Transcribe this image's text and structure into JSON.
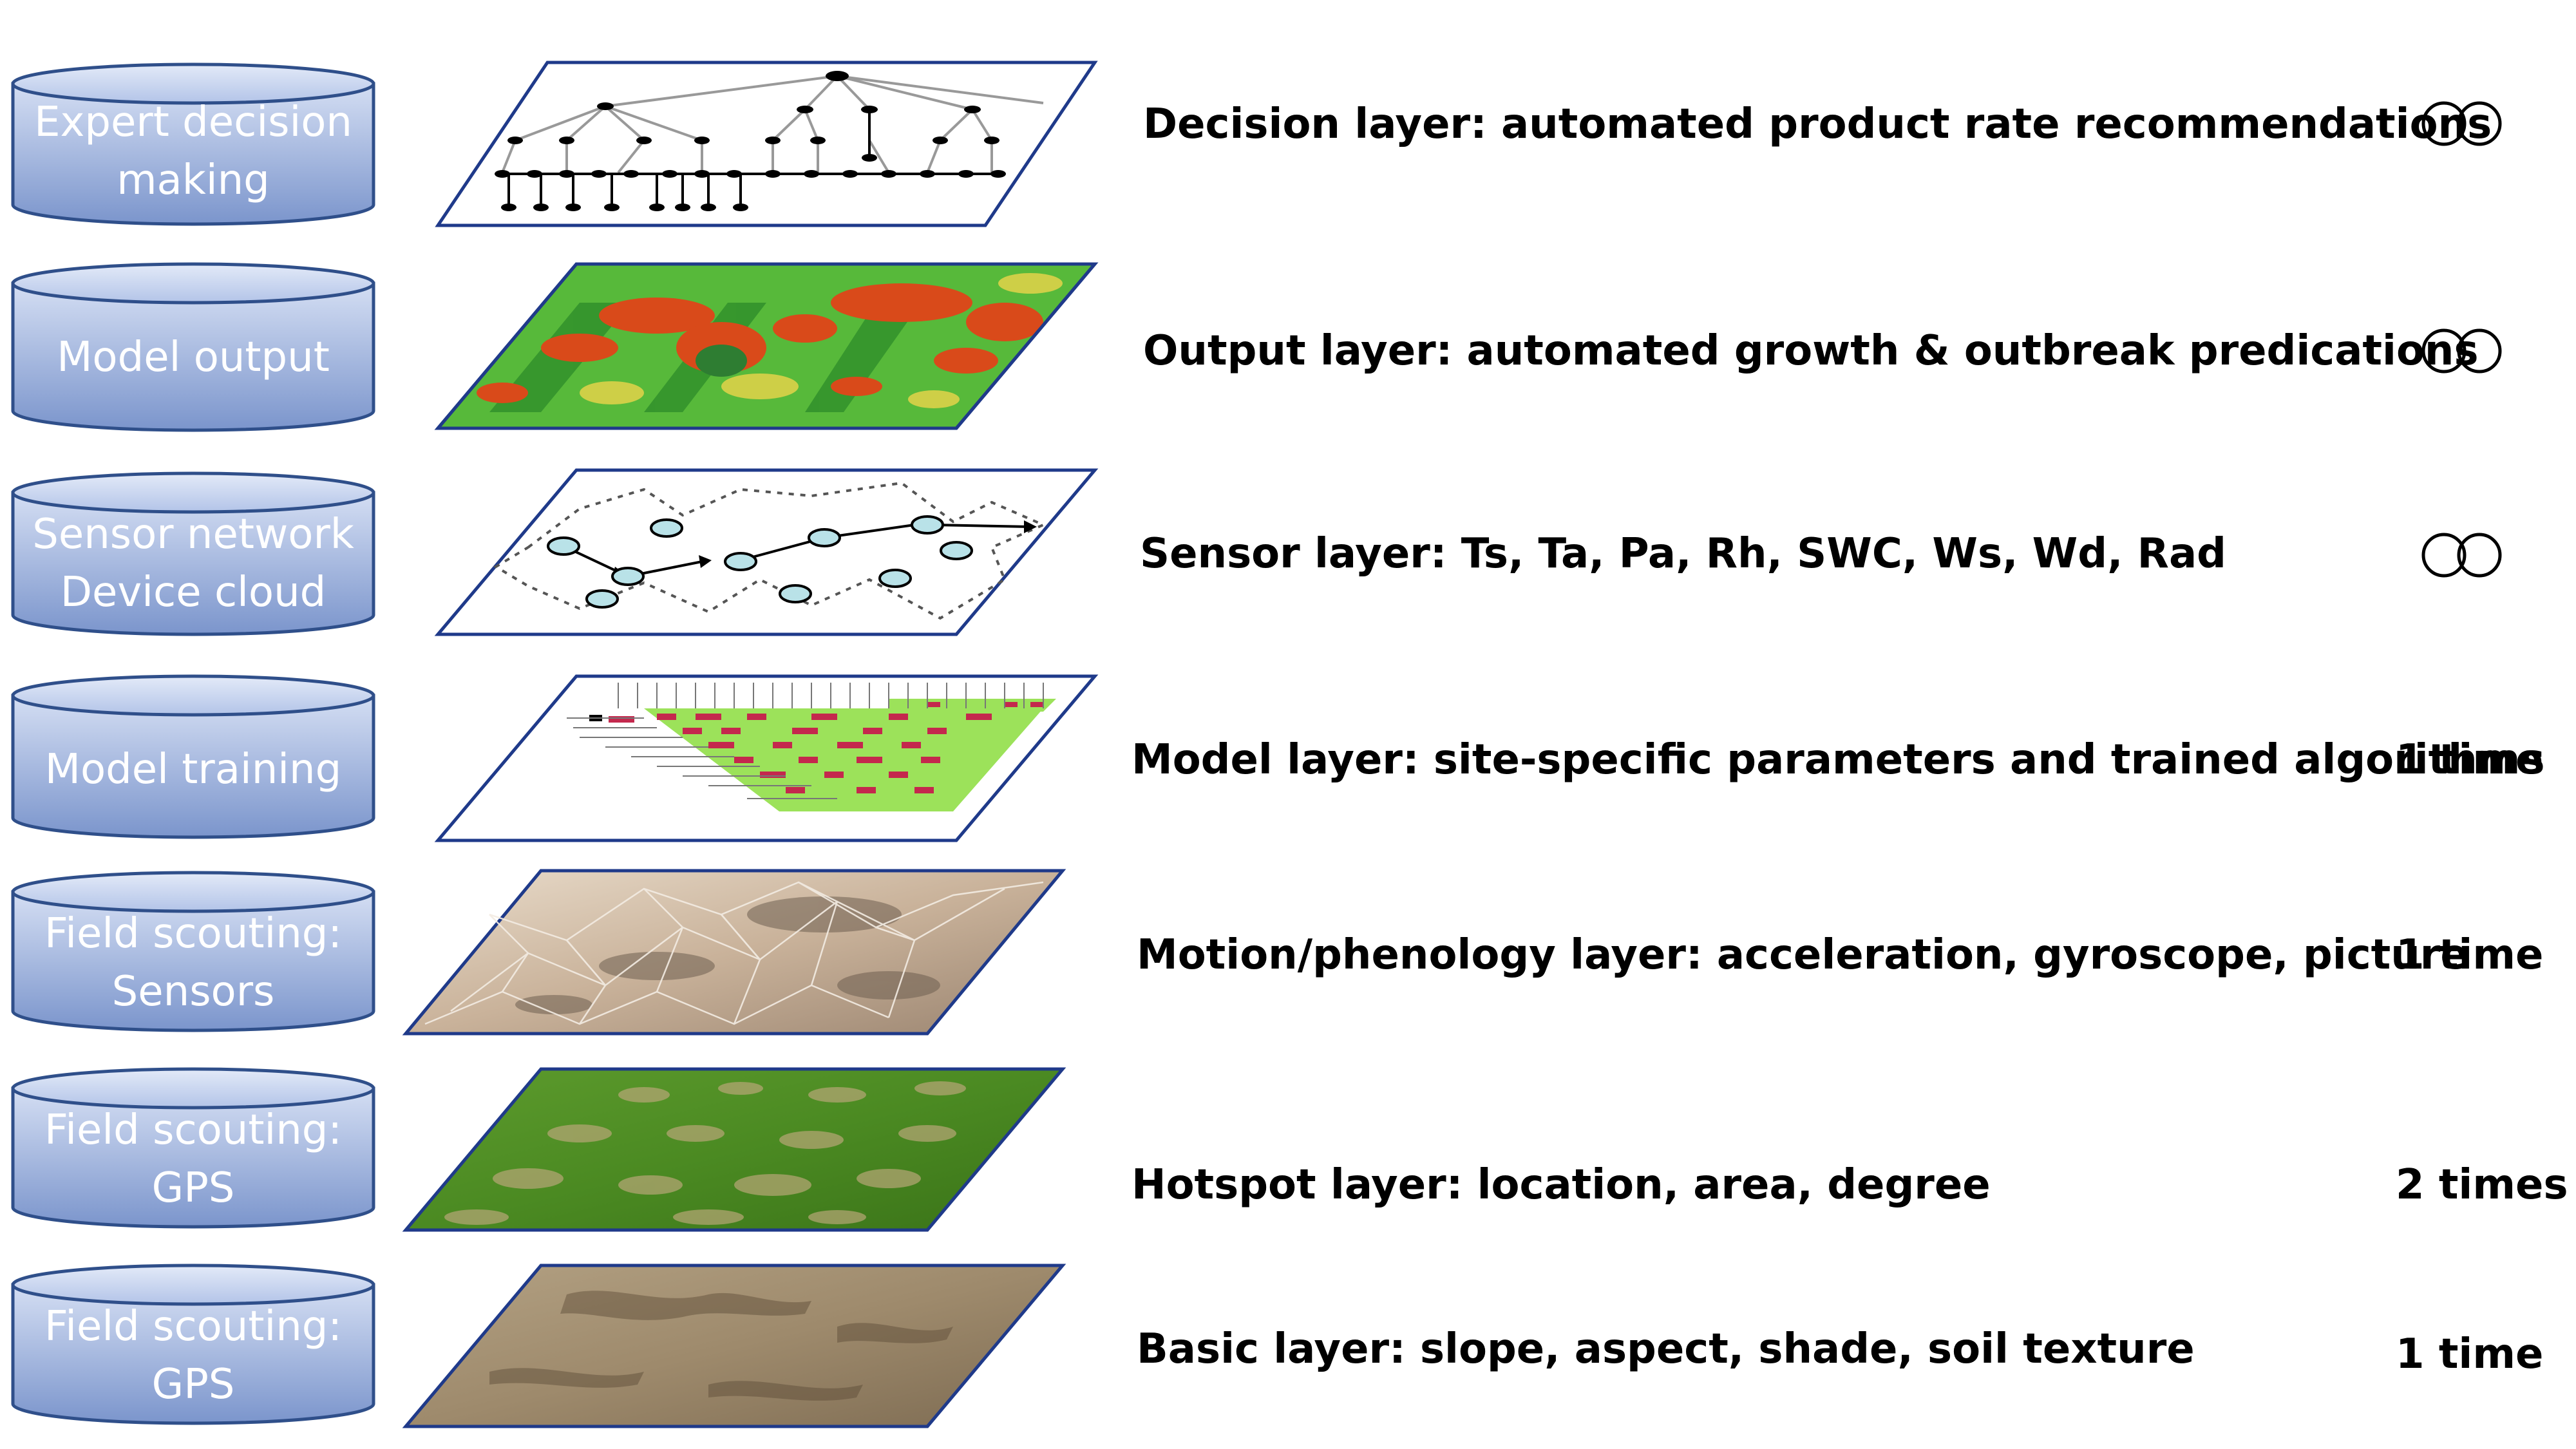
{
  "rows": [
    {
      "label": [
        "Expert decision",
        "making"
      ],
      "description": "Decision layer: automated product rate recommendations",
      "frequency": "",
      "frequency_icon": "infinity-icon"
    },
    {
      "label": [
        "Model output"
      ],
      "description": "Output layer: automated growth & outbreak predications",
      "frequency": "",
      "frequency_icon": "infinity-icon"
    },
    {
      "label": [
        "Sensor network",
        "Device cloud"
      ],
      "description": "Sensor layer: Ts, Ta, Pa, Rh, SWC, Ws, Wd, Rad",
      "frequency": "",
      "frequency_icon": "infinity-icon"
    },
    {
      "label": [
        "Model training"
      ],
      "description": "Model layer: site-specific parameters and trained algorithms",
      "frequency": "1 time"
    },
    {
      "label": [
        "Field scouting:",
        "Sensors"
      ],
      "description": "Motion/phenology layer: acceleration, gyroscope, picture",
      "frequency": "1 time"
    },
    {
      "label": [
        "Field scouting:",
        "GPS"
      ],
      "description": "Hotspot layer: location, area, degree",
      "frequency": "2 times"
    },
    {
      "label": [
        "Field scouting:",
        "GPS"
      ],
      "description": "Basic layer: slope, aspect, shade, soil texture",
      "frequency": "1 time"
    }
  ],
  "colors": {
    "cylinder_top": "#cdd9f0",
    "cylinder_bottom": "#7f98cf",
    "cylinder_stroke": "#2f4f8a",
    "layer_border": "#1f3a8a",
    "infinity_stroke": "#000000"
  }
}
